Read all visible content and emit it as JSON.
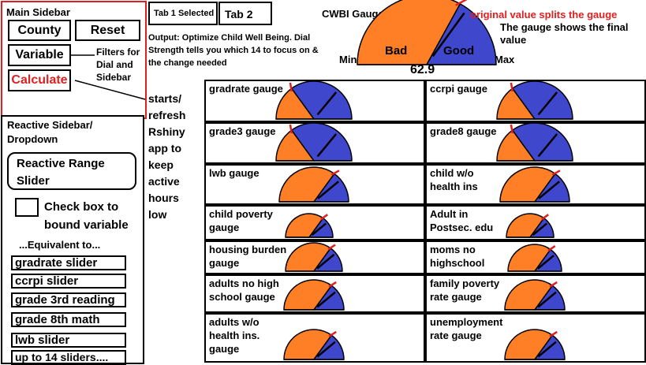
{
  "main_sidebar": {
    "title": "Main Sidebar",
    "buttons": {
      "county": "County",
      "reset": "Reset",
      "variable": "Variable",
      "calculate": "Calculate"
    },
    "filters_note": [
      "Filters for",
      "Dial and",
      "Sidebar"
    ],
    "calculate_note": [
      "starts/",
      "refresh",
      "Rshiny",
      "app to",
      "keep",
      "active",
      "hours",
      "low"
    ]
  },
  "tabs": {
    "tab1": "Tab 1 Selected",
    "tab2": "Tab 2"
  },
  "output_note": [
    "Output: Optimize Child Well Being.  Dial",
    "Strength tells you which 14 to focus on &",
    "the change needed"
  ],
  "main_gauge": {
    "title": "CWBI Gauge",
    "min_label": "Min",
    "max_label": "Max",
    "bad_label": "Bad",
    "good_label": "Good",
    "value_text": "62.9",
    "annotation_red": "original value splits the gauge",
    "annotation_black": [
      "The gauge shows the final",
      "value"
    ]
  },
  "reactive_sidebar": {
    "title": [
      "Reactive Sidebar/",
      "Dropdown"
    ],
    "range_slider": [
      "Reactive Range",
      "Slider"
    ],
    "checkbox_label": [
      "Check box to",
      "bound variable"
    ],
    "equivalent": "...Equivalent to...",
    "sliders": [
      "gradrate slider",
      "ccrpi slider",
      "grade 3rd reading",
      "grade 8th math",
      "lwb slider",
      "up to 14 sliders...."
    ]
  },
  "gauges": [
    {
      "label": [
        "gradrate gauge"
      ],
      "split": 0.3
    },
    {
      "label": [
        "ccrpi gauge"
      ],
      "split": 0.3
    },
    {
      "label": [
        "grade3 gauge"
      ],
      "split": 0.3
    },
    {
      "label": [
        "grade8 gauge"
      ],
      "split": 0.3
    },
    {
      "label": [
        "lwb gauge"
      ],
      "split": 0.7
    },
    {
      "label": [
        "child w/o",
        "health ins"
      ],
      "split": 0.7
    },
    {
      "label": [
        "child poverty",
        "gauge"
      ],
      "split": 0.7
    },
    {
      "label": [
        "Adult in",
        "Postsec. edu"
      ],
      "split": 0.7
    },
    {
      "label": [
        "housing burden",
        "gauge"
      ],
      "split": 0.7
    },
    {
      "label": [
        "moms no",
        "highschool"
      ],
      "split": 0.7
    },
    {
      "label": [
        "adults no high",
        "school gauge"
      ],
      "split": 0.7
    },
    {
      "label": [
        "family poverty",
        "rate gauge"
      ],
      "split": 0.7
    },
    {
      "label": [
        "adults w/o",
        "health ins.",
        "gauge"
      ],
      "split": 0.7
    },
    {
      "label": [
        "unemployment",
        "rate gauge"
      ],
      "split": 0.7
    }
  ],
  "colors": {
    "orange": "#ff7f27",
    "blue": "#3f48cc",
    "red": "#e02020"
  }
}
